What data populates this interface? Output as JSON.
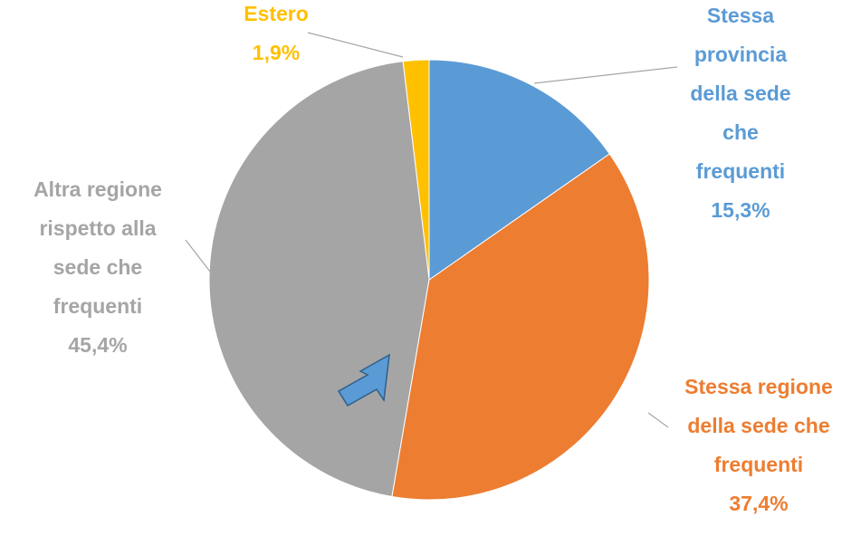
{
  "chart_data": {
    "type": "pie",
    "categories": [
      "Stessa provincia della sede che frequenti",
      "Stessa regione della sede che frequenti",
      "Altra regione rispetto alla sede che frequenti",
      "Estero"
    ],
    "values": [
      15.3,
      37.4,
      45.4,
      1.9
    ],
    "value_labels": [
      "15,3%",
      "37,4%",
      "45,4%",
      "1,9%"
    ],
    "colors": [
      "#5b9bd5",
      "#ed7d31",
      "#a5a5a5",
      "#ffc000"
    ]
  }
}
